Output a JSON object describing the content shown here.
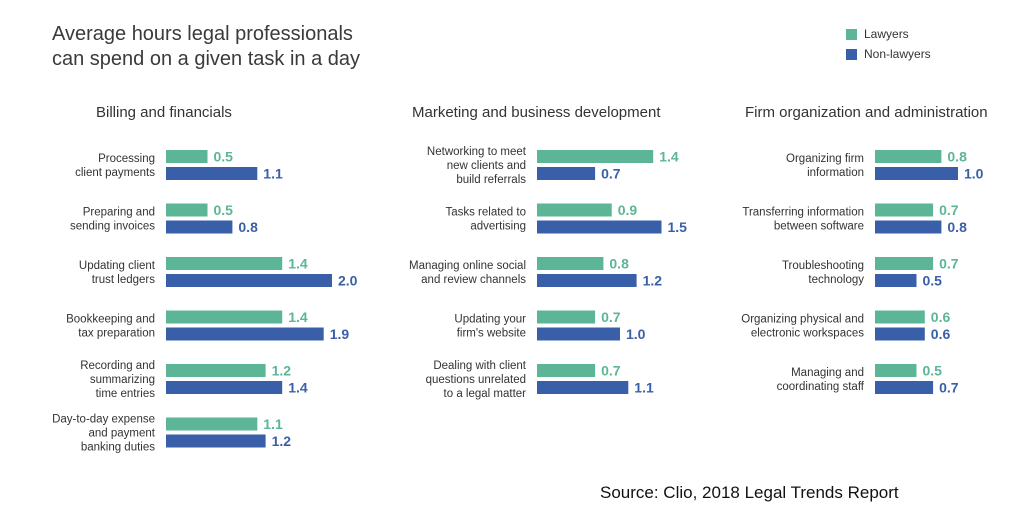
{
  "title_lines": [
    "Average hours legal professionals",
    "can spend on a given task in a day"
  ],
  "source": "Source: Clio, 2018 Legal Trends Report",
  "colors": {
    "lawyers": "#5db597",
    "non_lawyers": "#3a5fa9"
  },
  "chart_data": [
    {
      "type": "bar",
      "orientation": "horizontal",
      "title": "Billing and financials",
      "categories": [
        [
          "Processing",
          "client payments"
        ],
        [
          "Preparing and",
          "sending invoices"
        ],
        [
          "Updating client",
          "trust ledgers"
        ],
        [
          "Bookkeeping and",
          "tax preparation"
        ],
        [
          "Recording and",
          "summarizing",
          "time entries"
        ],
        [
          "Day-to-day expense",
          "and payment",
          "banking duties"
        ]
      ],
      "series": [
        {
          "name": "Lawyers",
          "values": [
            0.5,
            0.5,
            1.4,
            1.4,
            1.2,
            1.1
          ]
        },
        {
          "name": "Non-lawyers",
          "values": [
            1.1,
            0.8,
            2.0,
            1.9,
            1.4,
            1.2
          ]
        }
      ]
    },
    {
      "type": "bar",
      "orientation": "horizontal",
      "title": "Marketing and business development",
      "categories": [
        [
          "Networking to meet",
          "new clients and",
          "build referrals"
        ],
        [
          "Tasks related to",
          "advertising"
        ],
        [
          "Managing online social",
          "and review channels"
        ],
        [
          "Updating your",
          "firm's website"
        ],
        [
          "Dealing with client",
          "questions unrelated",
          "to a legal matter"
        ]
      ],
      "series": [
        {
          "name": "Lawyers",
          "values": [
            1.4,
            0.9,
            0.8,
            0.7,
            0.7
          ]
        },
        {
          "name": "Non-lawyers",
          "values": [
            0.7,
            1.5,
            1.2,
            1.0,
            1.1
          ]
        }
      ]
    },
    {
      "type": "bar",
      "orientation": "horizontal",
      "title": "Firm organization and administration",
      "categories": [
        [
          "Organizing firm",
          "information"
        ],
        [
          "Transferring information",
          "between software"
        ],
        [
          "Troubleshooting",
          "technology"
        ],
        [
          "Organizing physical and",
          "electronic workspaces"
        ],
        [
          "Managing and",
          "coordinating staff"
        ]
      ],
      "series": [
        {
          "name": "Lawyers",
          "values": [
            0.8,
            0.7,
            0.7,
            0.6,
            0.5
          ]
        },
        {
          "name": "Non-lawyers",
          "values": [
            1.0,
            0.8,
            0.5,
            0.6,
            0.7
          ]
        }
      ]
    }
  ]
}
